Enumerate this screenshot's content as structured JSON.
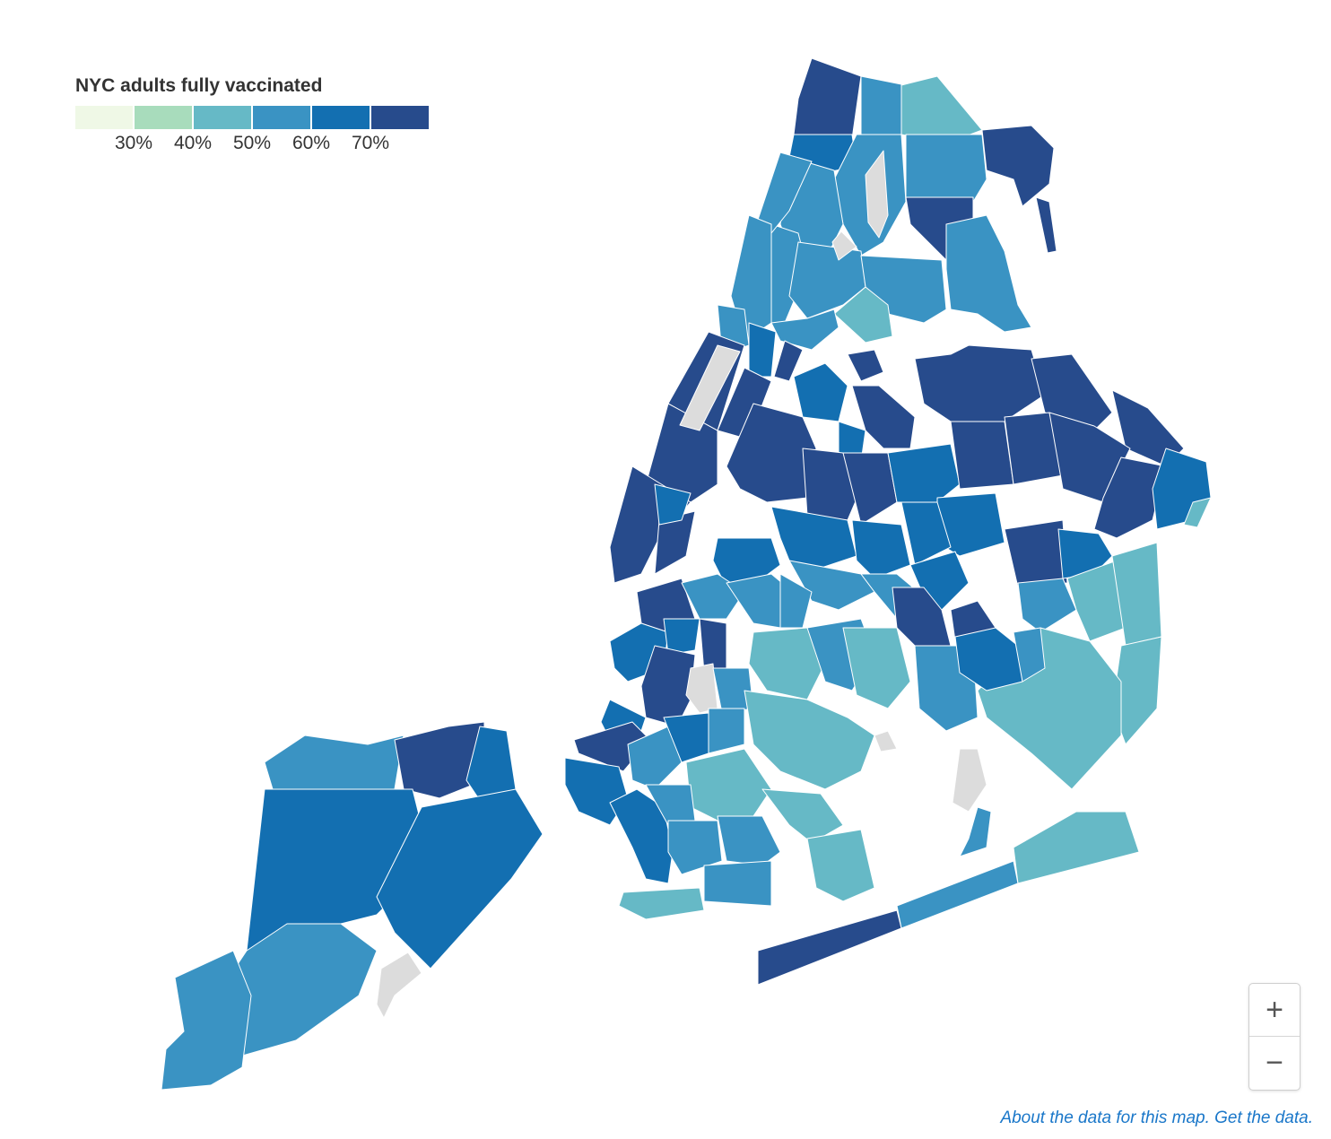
{
  "legend": {
    "title": "NYC adults fully vaccinated",
    "colors": [
      "#eff8e6",
      "#a8dcbc",
      "#66b9c6",
      "#3a93c3",
      "#136fb1",
      "#274b8c"
    ],
    "ticks": [
      "30%",
      "40%",
      "50%",
      "60%",
      "70%"
    ]
  },
  "no_data_color": "#dcdcdc",
  "zoom": {
    "in_label": "+",
    "out_label": "−"
  },
  "footer": {
    "about_link": "About the data for this map",
    "separator": ". ",
    "get_link": "Get the data",
    "end": "."
  }
}
